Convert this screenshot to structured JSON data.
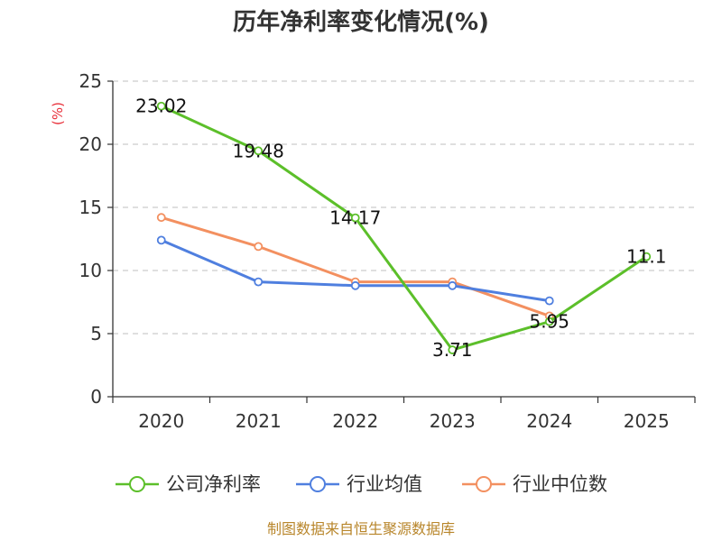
{
  "chart_data": {
    "type": "line",
    "title": "历年净利率变化情况(%)",
    "ylabel": "(%)",
    "xlabel": "",
    "categories": [
      "2020",
      "2021",
      "2022",
      "2023",
      "2024",
      "2025"
    ],
    "ylim": [
      0,
      25
    ],
    "yticks": [
      0,
      5,
      10,
      15,
      20,
      25
    ],
    "grid": true,
    "legend_position": "bottom",
    "series": [
      {
        "name": "公司净利率",
        "color": "#5cbf2a",
        "values": [
          23.02,
          19.48,
          14.17,
          3.71,
          5.95,
          11.1
        ],
        "labels": [
          "23.02",
          "19.48",
          "14.17",
          "3.71",
          "5.95",
          "11.1"
        ]
      },
      {
        "name": "行业均值",
        "color": "#4f7fdf",
        "values": [
          12.4,
          9.1,
          8.8,
          8.8,
          7.6,
          null
        ]
      },
      {
        "name": "行业中位数",
        "color": "#f39060",
        "values": [
          14.2,
          11.9,
          9.1,
          9.1,
          6.4,
          null
        ]
      }
    ]
  },
  "source_text": "制图数据来自恒生聚源数据库"
}
